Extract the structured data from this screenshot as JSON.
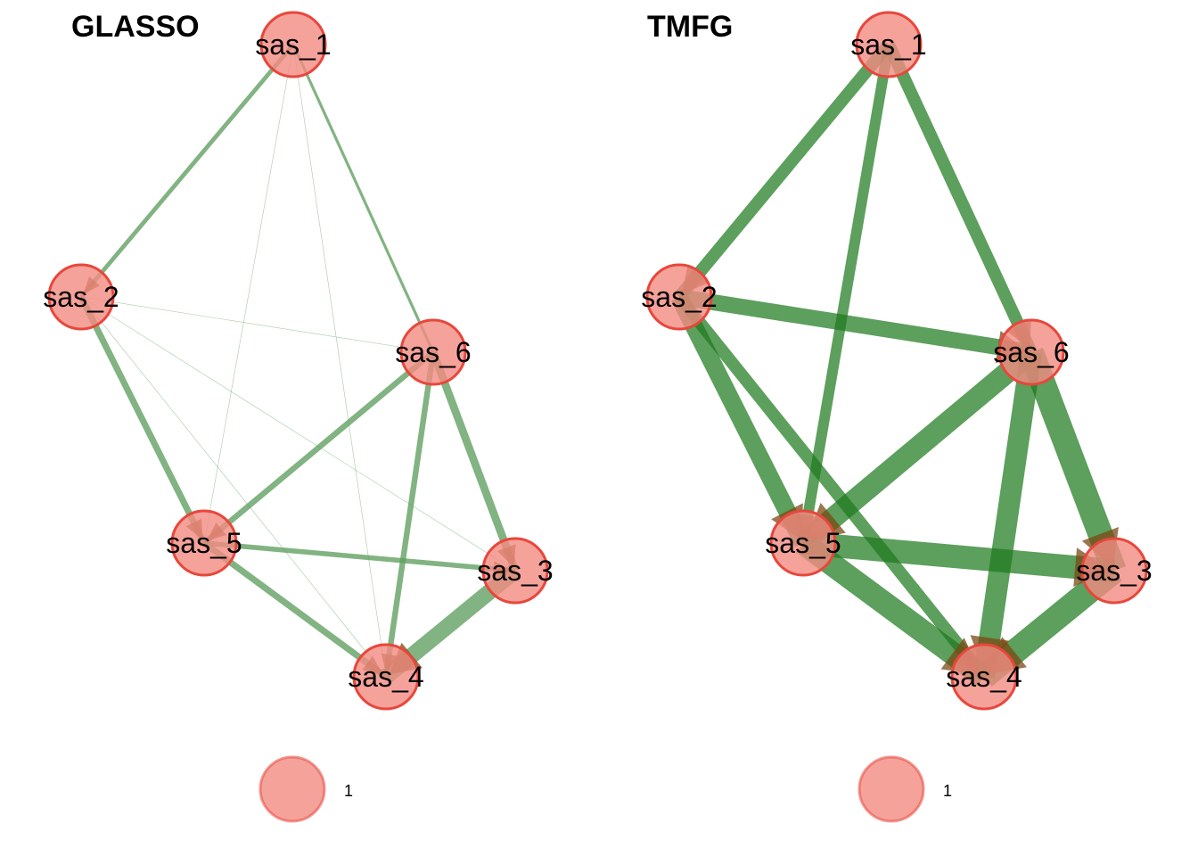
{
  "colors": {
    "node_fill": "#f28b82",
    "node_stroke": "#e8473c",
    "edge_glasso": "#5f9e5f",
    "edge_tmfg": "#1e7a1e",
    "arrow_fill": "#7a4a14"
  },
  "panels": [
    {
      "id": "glasso",
      "title": "GLASSO",
      "nodes": [
        "sas_1",
        "sas_2",
        "sas_3",
        "sas_4",
        "sas_5",
        "sas_6"
      ],
      "edges": [
        {
          "from": "sas_1",
          "to": "sas_2",
          "weight": 0.12
        },
        {
          "from": "sas_1",
          "to": "sas_6",
          "weight": 0.08
        },
        {
          "from": "sas_1",
          "to": "sas_5",
          "weight": 0.01
        },
        {
          "from": "sas_1",
          "to": "sas_4",
          "weight": 0.01
        },
        {
          "from": "sas_2",
          "to": "sas_6",
          "weight": 0.01
        },
        {
          "from": "sas_2",
          "to": "sas_5",
          "weight": 0.18
        },
        {
          "from": "sas_2",
          "to": "sas_3",
          "weight": 0.01
        },
        {
          "from": "sas_2",
          "to": "sas_4",
          "weight": 0.01
        },
        {
          "from": "sas_6",
          "to": "sas_5",
          "weight": 0.16
        },
        {
          "from": "sas_6",
          "to": "sas_4",
          "weight": 0.16
        },
        {
          "from": "sas_6",
          "to": "sas_3",
          "weight": 0.22
        },
        {
          "from": "sas_5",
          "to": "sas_3",
          "weight": 0.14
        },
        {
          "from": "sas_5",
          "to": "sas_4",
          "weight": 0.18
        },
        {
          "from": "sas_3",
          "to": "sas_4",
          "weight": 0.45
        }
      ],
      "legend": {
        "label": "1"
      }
    },
    {
      "id": "tmfg",
      "title": "TMFG",
      "nodes": [
        "sas_1",
        "sas_2",
        "sas_3",
        "sas_4",
        "sas_5",
        "sas_6"
      ],
      "edges": [
        {
          "from": "sas_1",
          "to": "sas_2",
          "weight": 0.35
        },
        {
          "from": "sas_1",
          "to": "sas_6",
          "weight": 0.35
        },
        {
          "from": "sas_1",
          "to": "sas_5",
          "weight": 0.3
        },
        {
          "from": "sas_2",
          "to": "sas_6",
          "weight": 0.45
        },
        {
          "from": "sas_2",
          "to": "sas_5",
          "weight": 0.5
        },
        {
          "from": "sas_2",
          "to": "sas_4",
          "weight": 0.35
        },
        {
          "from": "sas_6",
          "to": "sas_5",
          "weight": 0.6
        },
        {
          "from": "sas_6",
          "to": "sas_4",
          "weight": 0.6
        },
        {
          "from": "sas_6",
          "to": "sas_3",
          "weight": 0.7
        },
        {
          "from": "sas_5",
          "to": "sas_3",
          "weight": 0.65
        },
        {
          "from": "sas_5",
          "to": "sas_4",
          "weight": 0.65
        },
        {
          "from": "sas_3",
          "to": "sas_4",
          "weight": 0.7
        }
      ],
      "legend": {
        "label": "1"
      }
    }
  ]
}
